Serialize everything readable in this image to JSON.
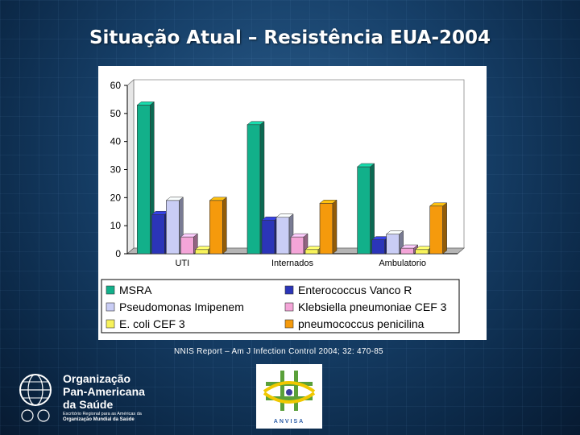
{
  "title": "Situação Atual – Resistência EUA-2004",
  "source": "NNIS Report – Am J Infection Control 2004; 32: 470-85",
  "chart_data": {
    "type": "bar",
    "title": "",
    "categories": [
      "UTI",
      "Internados",
      "Ambulatorio"
    ],
    "ylim": [
      0,
      60
    ],
    "yticks": [
      0,
      10,
      20,
      30,
      40,
      50,
      60
    ],
    "grid": false,
    "legend": "bottom",
    "series": [
      {
        "name": "MSRA",
        "color": "#12b08a",
        "values": [
          53,
          46,
          31
        ]
      },
      {
        "name": "Enterococcus Vanco R",
        "color": "#2b35b8",
        "values": [
          14,
          12,
          5
        ]
      },
      {
        "name": "Pseudomonas Imipenem",
        "color": "#c9cdf5",
        "values": [
          19,
          13,
          7
        ]
      },
      {
        "name": "Klebsiella pneumoniae CEF 3",
        "color": "#f4a5d8",
        "values": [
          6,
          6,
          2
        ]
      },
      {
        "name": "E. coli CEF 3",
        "color": "#f7f25a",
        "values": [
          1.5,
          1.5,
          1.5
        ]
      },
      {
        "name": "pneumococcus  penicilina",
        "color": "#f59a0c",
        "values": [
          19,
          18,
          17
        ]
      }
    ]
  },
  "logos": {
    "paho_line1": "Organização",
    "paho_line2": "Pan-Americana",
    "paho_line3": "da Saúde",
    "paho_sub1": "Escritório Regional para as Américas da",
    "paho_sub2": "Organização Mundial da Saúde",
    "anvisa": "ANVISA"
  }
}
